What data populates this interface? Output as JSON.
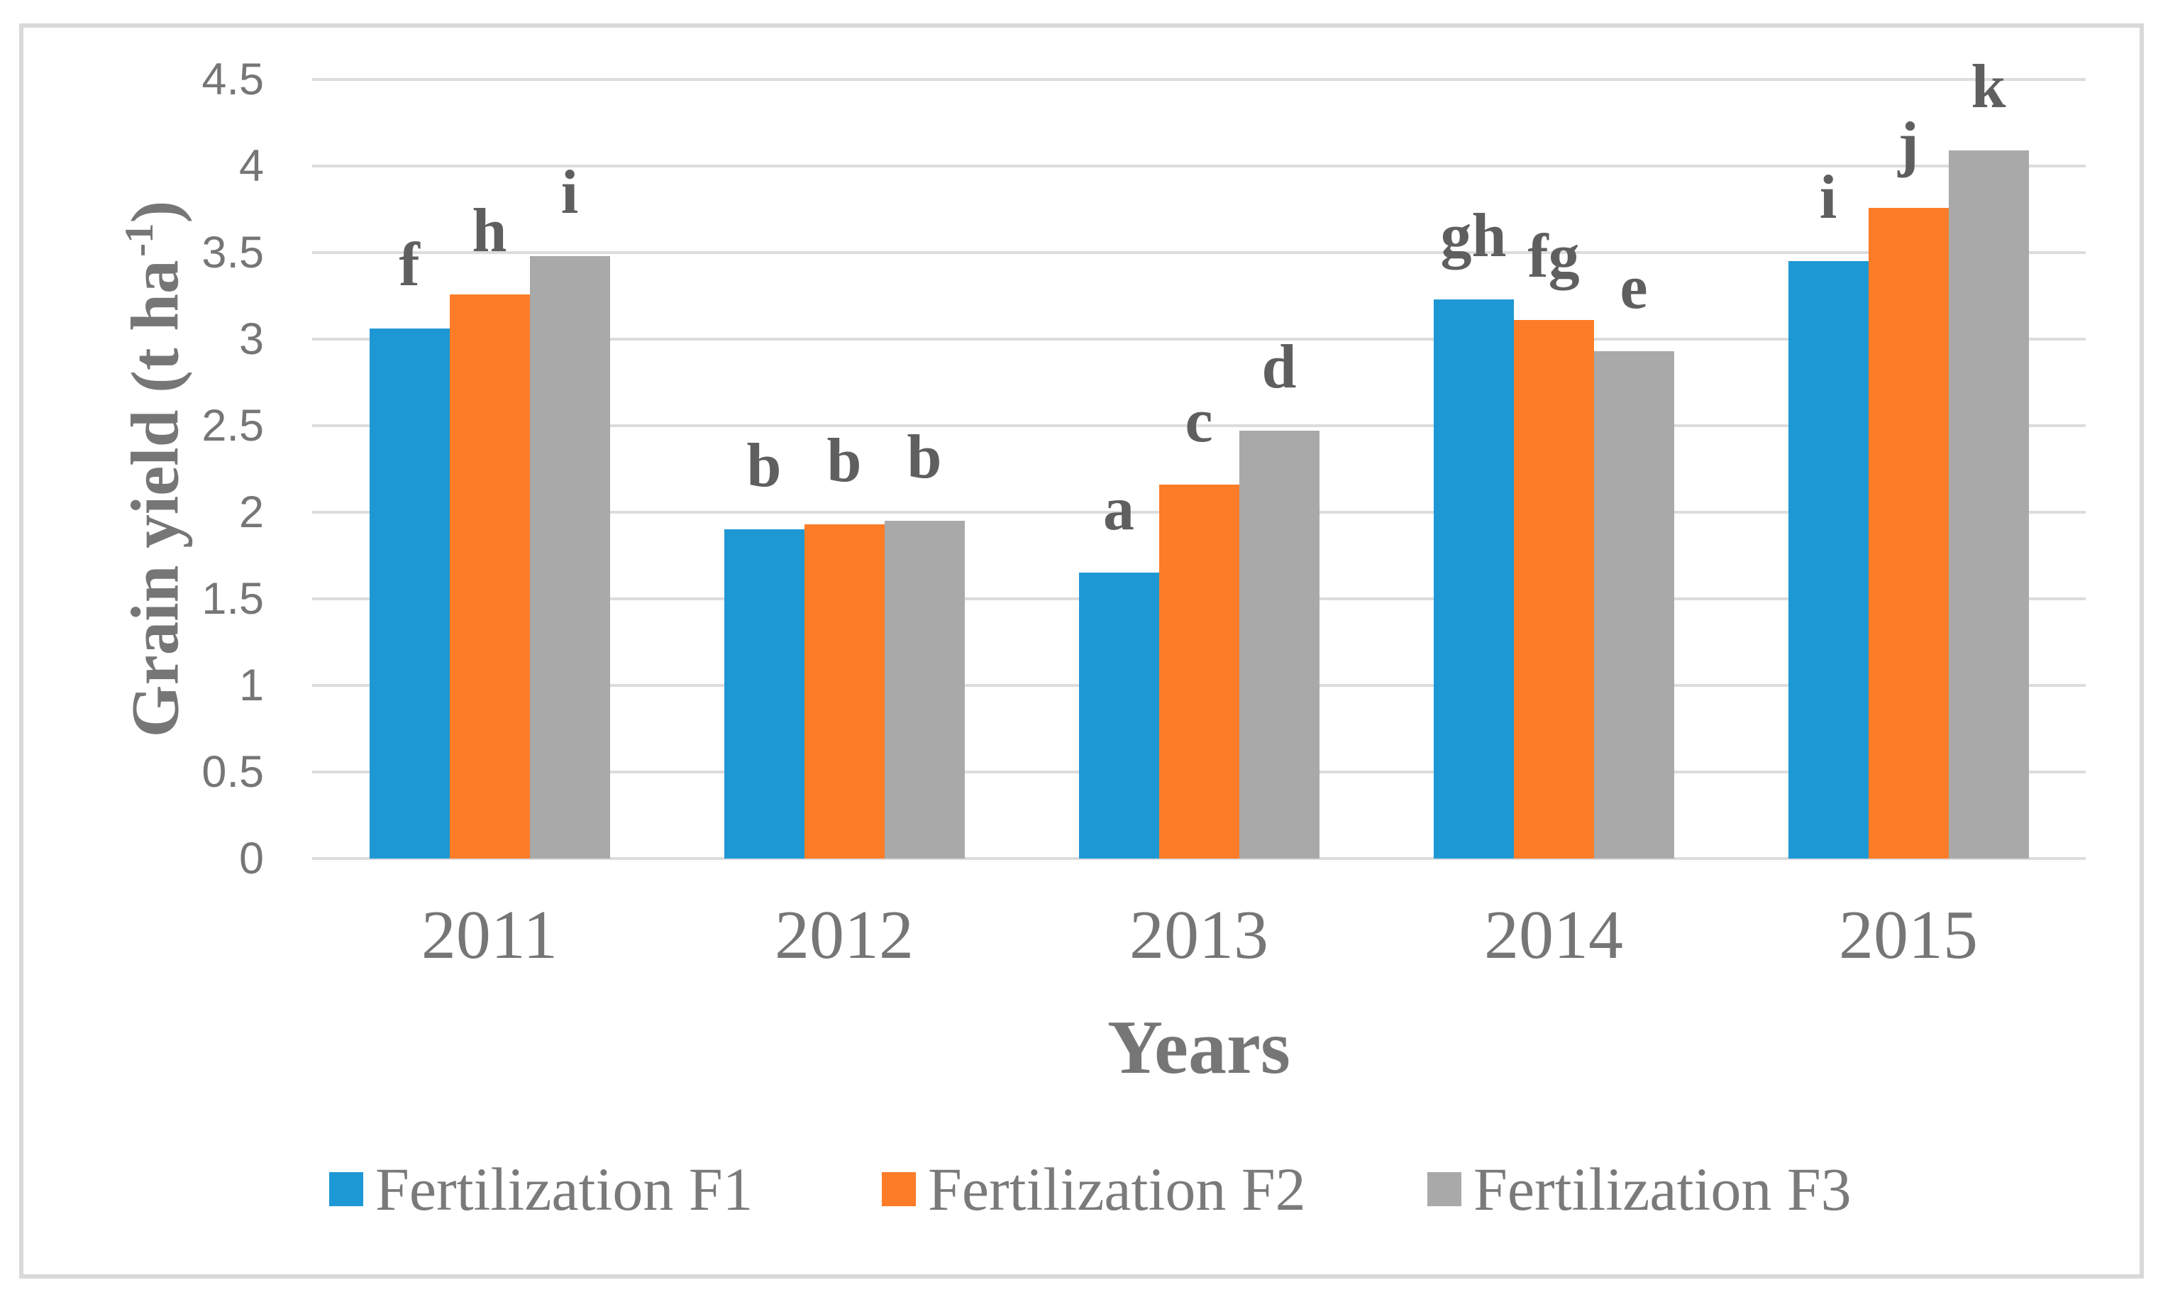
{
  "chart_data": {
    "type": "bar",
    "categories": [
      "2011",
      "2012",
      "2013",
      "2014",
      "2015"
    ],
    "series": [
      {
        "name": "Fertilization F1",
        "key": "f1",
        "color": "#1E98D4",
        "values": [
          3.06,
          1.9,
          1.65,
          3.23,
          3.45
        ],
        "letters": [
          "f",
          "b",
          "a",
          "gh",
          "i"
        ]
      },
      {
        "name": "Fertilization F2",
        "key": "f2",
        "color": "#FC7C28",
        "values": [
          3.26,
          1.93,
          2.16,
          3.11,
          3.76
        ],
        "letters": [
          "h",
          "b",
          "c",
          "fg",
          "j"
        ]
      },
      {
        "name": "Fertilization F3",
        "key": "f3",
        "color": "#A9A9A9",
        "values": [
          3.48,
          1.95,
          2.47,
          2.93,
          4.09
        ],
        "letters": [
          "i",
          "b",
          "d",
          "e",
          "k"
        ]
      }
    ],
    "xlabel": "Years",
    "ylabel": {
      "main": "Grain yield (t ha",
      "sup": "-1",
      "close": ")"
    },
    "ylim": [
      0,
      4.5
    ],
    "yticks": [
      "0",
      "0.5",
      "1",
      "1.5",
      "2",
      "2.5",
      "3",
      "3.5",
      "4",
      "4.5"
    ],
    "grid": true,
    "legend_position": "bottom"
  },
  "colors": {
    "background": "#FFFFFF",
    "frame_border": "#D9D9D9",
    "gridline": "#DCDCDC",
    "axis_text": "#767676",
    "letter_text": "#5F5F5F",
    "legend_text": "#7A7A7A"
  }
}
